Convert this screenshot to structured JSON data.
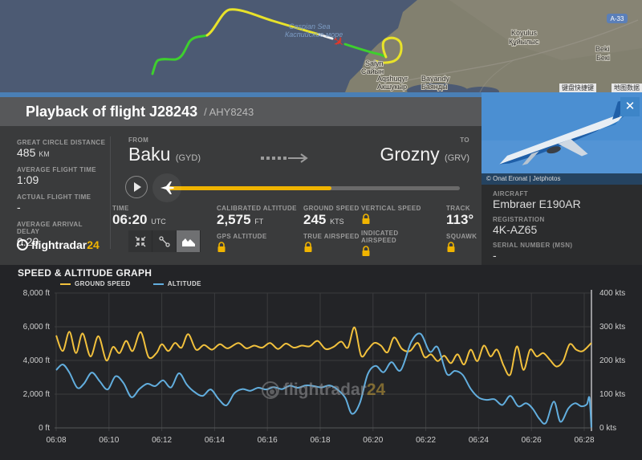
{
  "map": {
    "sea_label_en": "Caspian Sea",
    "sea_label_local": "Каспийское море",
    "towns": [
      {
        "en": "Saiyn",
        "local": "Сайын"
      },
      {
        "en": "Aqshuqyr",
        "local": "Акшукыр"
      },
      {
        "en": "Bayandy",
        "local": "Баянды"
      },
      {
        "en": "Koyulus",
        "local": "Құйылыс"
      },
      {
        "en": "Beki",
        "local": "Бекі"
      }
    ],
    "road_badge": "A-33",
    "attribution": [
      "键盘快捷键",
      "地图数据"
    ]
  },
  "header": {
    "title": "Playback of flight J28243",
    "subtitle": "/ AHY8243"
  },
  "stats": [
    {
      "label": "GREAT CIRCLE DISTANCE",
      "value": "485",
      "unit": "KM"
    },
    {
      "label": "AVERAGE FLIGHT TIME",
      "value": "1:09",
      "unit": ""
    },
    {
      "label": "ACTUAL FLIGHT TIME",
      "value": "-",
      "unit": ""
    },
    {
      "label": "AVERAGE ARRIVAL DELAY",
      "value": "0:20",
      "unit": ""
    }
  ],
  "brand": {
    "name": "flightradar",
    "suffix": "24"
  },
  "route": {
    "from_label": "FROM",
    "from_city": "Baku",
    "from_code": "(GYD)",
    "to_label": "TO",
    "to_city": "Grozny",
    "to_code": "(GRV)"
  },
  "telemetry": {
    "time_label": "TIME",
    "time_value": "06:20",
    "time_unit": "UTC",
    "calibrated_altitude": {
      "label": "CALIBRATED ALTITUDE",
      "value": "2,575",
      "unit": "FT"
    },
    "ground_speed": {
      "label": "GROUND SPEED",
      "value": "245",
      "unit": "KTS"
    },
    "vertical_speed": {
      "label": "VERTICAL SPEED"
    },
    "track": {
      "label": "TRACK",
      "value": "113°"
    },
    "gps_altitude": {
      "label": "GPS ALTITUDE"
    },
    "true_airspeed": {
      "label": "TRUE AIRSPEED"
    },
    "indicated_airspeed": {
      "label": "INDICATED AIRSPEED"
    },
    "squawk": {
      "label": "SQUAWK"
    }
  },
  "aircraft_panel": {
    "photo_credit": "© Onat Eronat | Jetphotos",
    "close_glyph": "✕",
    "fields": [
      {
        "label": "AIRCRAFT",
        "value": "Embraer E190AR"
      },
      {
        "label": "REGISTRATION",
        "value": "4K-AZ65"
      },
      {
        "label": "SERIAL NUMBER (MSN)",
        "value": "-"
      }
    ]
  },
  "graph": {
    "title": "SPEED & ALTITUDE GRAPH"
  },
  "chart_data": {
    "type": "line",
    "title": "SPEED & ALTITUDE GRAPH",
    "x_axis": {
      "start_label": "06:08",
      "tick_labels": [
        "06:08",
        "06:10",
        "06:12",
        "06:14",
        "06:16",
        "06:18",
        "06:20",
        "06:22",
        "06:24",
        "06:26",
        "06:28"
      ],
      "tick_step_minutes": 2,
      "span_minutes": 20.3
    },
    "left_axis": {
      "name": "altitude",
      "unit": "ft",
      "range": [
        0,
        8000
      ],
      "tick_labels": [
        "8,000 ft",
        "6,000 ft",
        "4,000 ft",
        "2,000 ft",
        "0 ft"
      ]
    },
    "right_axis": {
      "name": "speed",
      "unit": "kts",
      "range": [
        0,
        400
      ],
      "tick_labels": [
        "400 kts",
        "300 kts",
        "200 kts",
        "100 kts",
        "0 kts"
      ]
    },
    "grid": true,
    "legend_position": "top-left",
    "series": [
      {
        "name": "GROUND SPEED",
        "axis": "right",
        "unit": "kts",
        "color": "#f2c13d",
        "points": [
          [
            0,
            274
          ],
          [
            0.25,
            228
          ],
          [
            0.5,
            285
          ],
          [
            0.75,
            222
          ],
          [
            1.0,
            280
          ],
          [
            1.3,
            212
          ],
          [
            1.6,
            272
          ],
          [
            1.9,
            200
          ],
          [
            2.15,
            240
          ],
          [
            2.4,
            222
          ],
          [
            2.65,
            258
          ],
          [
            2.9,
            228
          ],
          [
            3.2,
            284
          ],
          [
            3.5,
            210
          ],
          [
            3.8,
            222
          ],
          [
            4.0,
            248
          ],
          [
            4.25,
            228
          ],
          [
            4.5,
            252
          ],
          [
            4.75,
            238
          ],
          [
            5.0,
            278
          ],
          [
            5.3,
            232
          ],
          [
            5.6,
            246
          ],
          [
            5.9,
            232
          ],
          [
            6.2,
            248
          ],
          [
            6.5,
            236
          ],
          [
            6.9,
            252
          ],
          [
            7.2,
            236
          ],
          [
            7.5,
            244
          ],
          [
            7.8,
            238
          ],
          [
            8.1,
            252
          ],
          [
            8.4,
            234
          ],
          [
            8.7,
            250
          ],
          [
            9.0,
            238
          ],
          [
            9.3,
            244
          ],
          [
            9.6,
            242
          ],
          [
            9.9,
            258
          ],
          [
            10.2,
            234
          ],
          [
            10.5,
            240
          ],
          [
            10.8,
            256
          ],
          [
            11.05,
            238
          ],
          [
            11.3,
            298
          ],
          [
            11.55,
            214
          ],
          [
            11.8,
            232
          ],
          [
            12.05,
            252
          ],
          [
            12.3,
            244
          ],
          [
            12.55,
            224
          ],
          [
            12.8,
            268
          ],
          [
            13.1,
            234
          ],
          [
            13.4,
            228
          ],
          [
            13.7,
            252
          ],
          [
            13.95,
            210
          ],
          [
            14.2,
            218
          ],
          [
            14.45,
            198
          ],
          [
            14.7,
            214
          ],
          [
            14.95,
            192
          ],
          [
            15.2,
            218
          ],
          [
            15.45,
            188
          ],
          [
            15.7,
            232
          ],
          [
            15.95,
            198
          ],
          [
            16.2,
            244
          ],
          [
            16.45,
            212
          ],
          [
            16.7,
            232
          ],
          [
            16.95,
            184
          ],
          [
            17.2,
            158
          ],
          [
            17.45,
            242
          ],
          [
            17.7,
            172
          ],
          [
            17.95,
            232
          ],
          [
            18.2,
            212
          ],
          [
            18.45,
            222
          ],
          [
            18.7,
            202
          ],
          [
            18.95,
            182
          ],
          [
            19.2,
            198
          ],
          [
            19.45,
            248
          ],
          [
            19.7,
            232
          ],
          [
            19.95,
            228
          ],
          [
            20.27,
            252
          ]
        ]
      },
      {
        "name": "ALTITUDE",
        "axis": "left",
        "unit": "ft",
        "color": "#62aede",
        "points": [
          [
            0,
            3430
          ],
          [
            0.25,
            3760
          ],
          [
            0.5,
            3280
          ],
          [
            0.8,
            2380
          ],
          [
            1.05,
            2620
          ],
          [
            1.35,
            3280
          ],
          [
            1.65,
            2760
          ],
          [
            1.95,
            2280
          ],
          [
            2.25,
            3060
          ],
          [
            2.55,
            2660
          ],
          [
            2.85,
            1820
          ],
          [
            3.15,
            2300
          ],
          [
            3.45,
            2620
          ],
          [
            3.75,
            2480
          ],
          [
            4.05,
            2820
          ],
          [
            4.35,
            2400
          ],
          [
            4.65,
            3240
          ],
          [
            4.95,
            2560
          ],
          [
            5.25,
            2120
          ],
          [
            5.55,
            1900
          ],
          [
            5.85,
            2280
          ],
          [
            6.15,
            1720
          ],
          [
            6.45,
            1340
          ],
          [
            6.75,
            2060
          ],
          [
            7.05,
            2300
          ],
          [
            7.35,
            2200
          ],
          [
            7.65,
            2380
          ],
          [
            7.95,
            2280
          ],
          [
            8.25,
            2420
          ],
          [
            8.55,
            2300
          ],
          [
            8.85,
            2500
          ],
          [
            9.15,
            2380
          ],
          [
            9.45,
            2520
          ],
          [
            9.75,
            2480
          ],
          [
            10.05,
            2400
          ],
          [
            10.35,
            2520
          ],
          [
            10.65,
            2280
          ],
          [
            10.95,
            1780
          ],
          [
            11.2,
            840
          ],
          [
            11.5,
            1460
          ],
          [
            11.8,
            3180
          ],
          [
            12.1,
            3680
          ],
          [
            12.4,
            3300
          ],
          [
            12.7,
            3900
          ],
          [
            13.05,
            3420
          ],
          [
            13.45,
            5100
          ],
          [
            13.8,
            5580
          ],
          [
            14.15,
            4520
          ],
          [
            14.45,
            4780
          ],
          [
            14.8,
            3200
          ],
          [
            15.1,
            3380
          ],
          [
            15.4,
            3140
          ],
          [
            15.7,
            2320
          ],
          [
            16.0,
            1800
          ],
          [
            16.3,
            1660
          ],
          [
            16.6,
            1700
          ],
          [
            16.9,
            1360
          ],
          [
            17.2,
            1900
          ],
          [
            17.5,
            1280
          ],
          [
            17.8,
            1460
          ],
          [
            18.05,
            1140
          ],
          [
            18.3,
            540
          ],
          [
            18.55,
            300
          ],
          [
            18.85,
            1560
          ],
          [
            19.1,
            360
          ],
          [
            19.4,
            1160
          ],
          [
            19.65,
            1460
          ],
          [
            19.9,
            1280
          ],
          [
            20.1,
            1400
          ],
          [
            20.2,
            1780
          ],
          [
            20.27,
            30
          ]
        ]
      }
    ]
  },
  "colors": {
    "accent_yellow": "#f0b400",
    "accent_blue_bar": "#4a7fb5",
    "speed_line": "#f2c13d",
    "altitude_line": "#62aede"
  }
}
